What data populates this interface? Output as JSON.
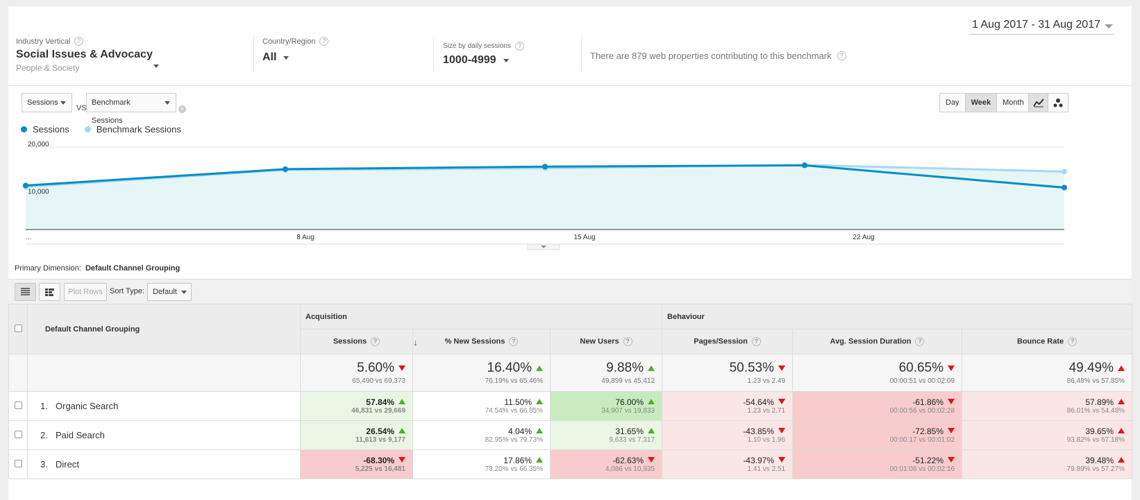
{
  "date_range": "1 Aug 2017 - 31 Aug 2017",
  "filters": {
    "industry": {
      "label": "Industry Vertical",
      "value": "Social Issues & Advocacy",
      "sub": "People & Society"
    },
    "country": {
      "label": "Country/Region",
      "value": "All"
    },
    "size": {
      "label": "Size by daily sessions",
      "value": "1000-4999"
    },
    "bench_info": "There are 879 web properties contributing to this benchmark"
  },
  "chart_controls": {
    "metric1": "Sessions",
    "vs": "VS",
    "metric2": "Benchmark Sessions",
    "periods": [
      "Day",
      "Week",
      "Month"
    ],
    "active_period": "Week"
  },
  "legend": [
    {
      "name": "Sessions",
      "color": "#058dc7"
    },
    {
      "name": "Benchmark Sessions",
      "color": "#a7d8f0"
    }
  ],
  "chart_data": {
    "type": "line",
    "x": [
      "...",
      "8 Aug",
      "15 Aug",
      "22 Aug",
      ""
    ],
    "xtick_labels": [
      "...",
      "8 Aug",
      "15 Aug",
      "22 Aug"
    ],
    "ytick_labels": [
      "20,000",
      "10,000"
    ],
    "ylim": [
      0,
      20000
    ],
    "series": [
      {
        "name": "Sessions",
        "color": "#058dc7",
        "values": [
          10500,
          14400,
          15000,
          15300,
          10000
        ]
      },
      {
        "name": "Benchmark Sessions",
        "color": "#a7d8f0",
        "values": [
          10200,
          14200,
          14600,
          15400,
          13800
        ]
      }
    ]
  },
  "primary_dimension": {
    "label": "Primary Dimension:",
    "value": "Default Channel Grouping"
  },
  "table_toolbar": {
    "plot_rows": "Plot Rows",
    "sort_label": "Sort Type:",
    "sort_value": "Default"
  },
  "table": {
    "dim_header": "Default Channel Grouping",
    "groups": [
      "Acquisition",
      "Behaviour"
    ],
    "columns": [
      "Sessions",
      "% New Sessions",
      "New Users",
      "Pages/Session",
      "Avg. Session Duration",
      "Bounce Rate"
    ],
    "totals": [
      {
        "pct": "5.60%",
        "dir": "down",
        "cmp": "65,490 vs 69,373"
      },
      {
        "pct": "16.40%",
        "dir": "up",
        "cmp": "76.19% vs 65.46%"
      },
      {
        "pct": "9.88%",
        "dir": "up",
        "cmp": "49,899 vs 45,412"
      },
      {
        "pct": "50.53%",
        "dir": "down",
        "cmp": "1.23 vs 2.49"
      },
      {
        "pct": "60.65%",
        "dir": "down",
        "cmp": "00:00:51 vs 00:02:09"
      },
      {
        "pct": "49.49%",
        "dir": "up_red",
        "cmp": "86.48% vs 57.85%"
      }
    ],
    "rows": [
      {
        "idx": "1.",
        "name": "Organic Search",
        "cells": [
          {
            "pct": "57.84%",
            "dir": "up",
            "cmp": "46,831 vs 29,669",
            "bg": "g1",
            "bold": true
          },
          {
            "pct": "11.50%",
            "dir": "up",
            "cmp": "74.54% vs 66.85%",
            "bg": "w"
          },
          {
            "pct": "76.00%",
            "dir": "up",
            "cmp": "34,907 vs 19,833",
            "bg": "g2"
          },
          {
            "pct": "-54.64%",
            "dir": "down",
            "cmp": "1.23 vs 2.71",
            "bg": "r1"
          },
          {
            "pct": "-61.86%",
            "dir": "down",
            "cmp": "00:00:56 vs 00:02:28",
            "bg": "r2"
          },
          {
            "pct": "57.89%",
            "dir": "up_red",
            "cmp": "86.01% vs 54.48%",
            "bg": "r1"
          }
        ]
      },
      {
        "idx": "2.",
        "name": "Paid Search",
        "cells": [
          {
            "pct": "26.54%",
            "dir": "up",
            "cmp": "11,613 vs 9,177",
            "bg": "g1",
            "bold": true
          },
          {
            "pct": "4.04%",
            "dir": "up",
            "cmp": "82.95% vs 79.73%",
            "bg": "w"
          },
          {
            "pct": "31.65%",
            "dir": "up",
            "cmp": "9,633 vs 7,317",
            "bg": "g1"
          },
          {
            "pct": "-43.85%",
            "dir": "down",
            "cmp": "1.10 vs 1.96",
            "bg": "r1"
          },
          {
            "pct": "-72.85%",
            "dir": "down",
            "cmp": "00:00:17 vs 00:01:02",
            "bg": "r2"
          },
          {
            "pct": "39.65%",
            "dir": "up_red",
            "cmp": "93.82% vs 67.18%",
            "bg": "r1"
          }
        ]
      },
      {
        "idx": "3.",
        "name": "Direct",
        "cells": [
          {
            "pct": "-68.30%",
            "dir": "down",
            "cmp": "5,225 vs 16,481",
            "bg": "r2",
            "bold": true
          },
          {
            "pct": "17.86%",
            "dir": "up",
            "cmp": "78.20% vs 66.35%",
            "bg": "w"
          },
          {
            "pct": "-62.63%",
            "dir": "down",
            "cmp": "4,086 vs 10,935",
            "bg": "r2"
          },
          {
            "pct": "-43.97%",
            "dir": "down",
            "cmp": "1.41 vs 2.51",
            "bg": "r1"
          },
          {
            "pct": "-51.22%",
            "dir": "down",
            "cmp": "00:01:06 vs 00:02:16",
            "bg": "r2"
          },
          {
            "pct": "39.48%",
            "dir": "up_red",
            "cmp": "79.89% vs 57.27%",
            "bg": "r1"
          }
        ]
      }
    ]
  }
}
